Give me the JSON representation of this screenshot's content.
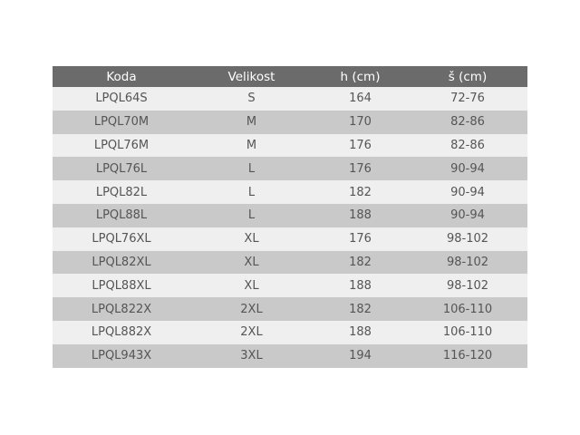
{
  "table": {
    "headers": [
      "Koda",
      "Velikost",
      "h (cm)",
      "š (cm)"
    ],
    "rows": [
      [
        "LPQL64S",
        "S",
        "164",
        "72-76"
      ],
      [
        "LPQL70M",
        "M",
        "170",
        "82-86"
      ],
      [
        "LPQL76M",
        "M",
        "176",
        "82-86"
      ],
      [
        "LPQL76L",
        "L",
        "176",
        "90-94"
      ],
      [
        "LPQL82L",
        "L",
        "182",
        "90-94"
      ],
      [
        "LPQL88L",
        "L",
        "188",
        "90-94"
      ],
      [
        "LPQL76XL",
        "XL",
        "176",
        "98-102"
      ],
      [
        "LPQL82XL",
        "XL",
        "182",
        "98-102"
      ],
      [
        "LPQL88XL",
        "XL",
        "188",
        "98-102"
      ],
      [
        "LPQL822X",
        "2XL",
        "182",
        "106-110"
      ],
      [
        "LPQL882X",
        "2XL",
        "188",
        "106-110"
      ],
      [
        "LPQL943X",
        "3XL",
        "194",
        "116-120"
      ]
    ],
    "colors": {
      "header_bg": "#6b6b6b",
      "row_light": "#efefef",
      "row_dark": "#c9c9c9",
      "text": "#555555"
    }
  }
}
